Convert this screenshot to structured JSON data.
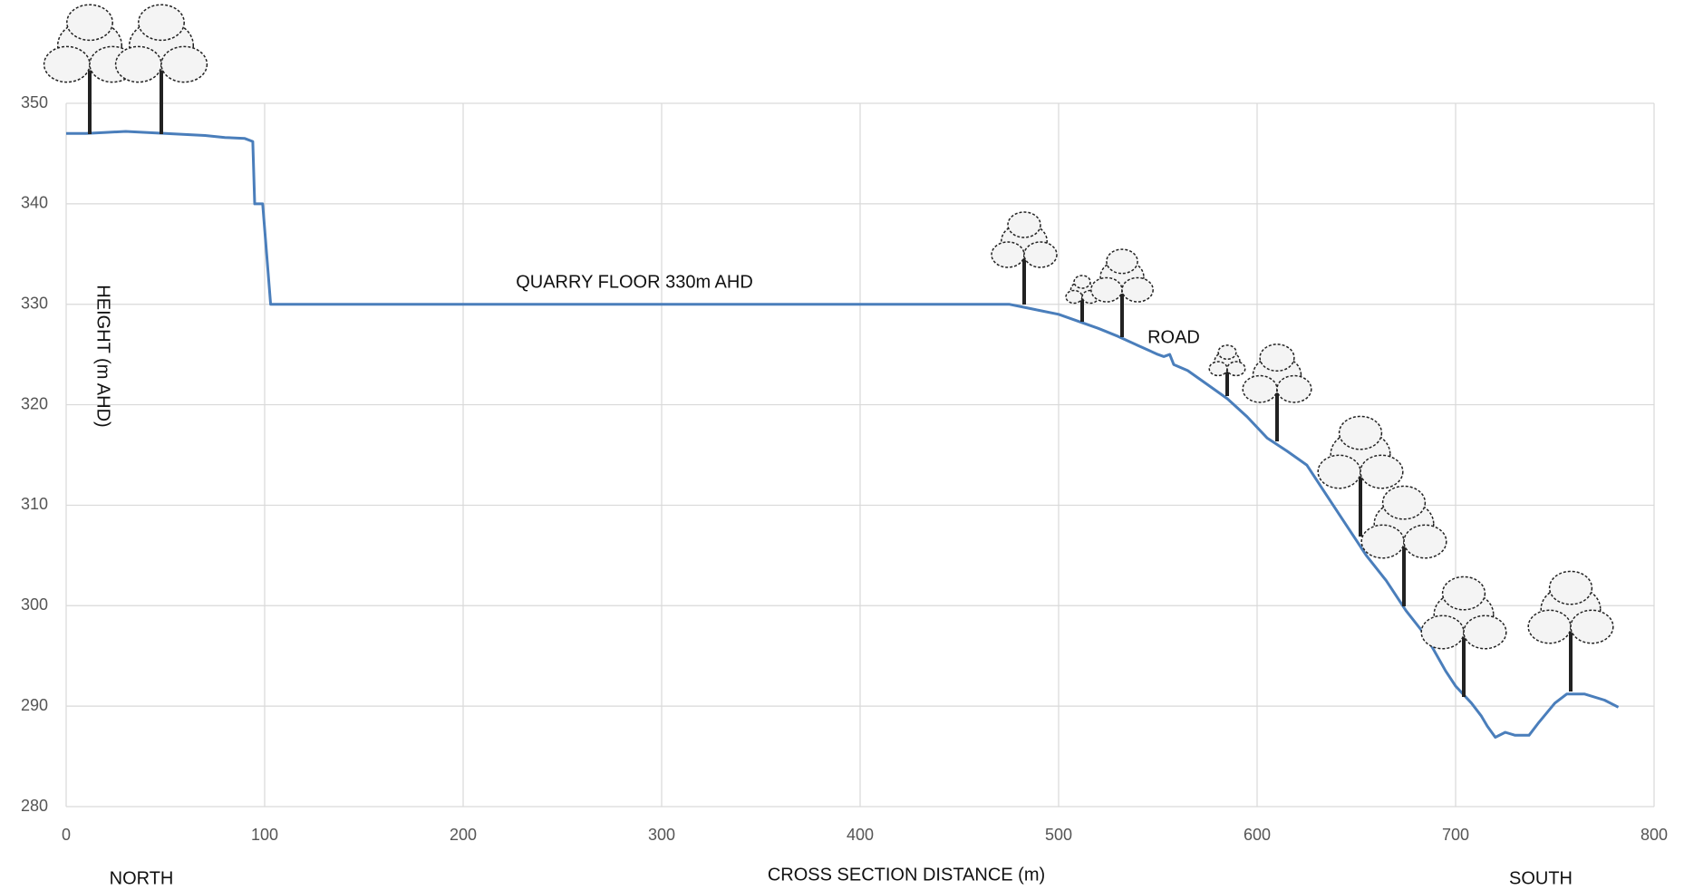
{
  "chart_data": {
    "type": "line",
    "xlabel": "CROSS SECTION DISTANCE (m)",
    "ylabel": "HEIGHT (m AHD)",
    "annotations": [
      "QUARRY FLOOR 330m AHD",
      "ROAD",
      "NORTH",
      "SOUTH"
    ],
    "x": [
      0,
      10,
      20,
      30,
      50,
      60,
      70,
      80,
      90,
      94,
      95,
      99,
      103,
      200,
      300,
      400,
      475,
      480,
      490,
      500,
      510,
      520,
      530,
      540,
      550,
      553,
      556,
      558,
      565,
      575,
      585,
      595,
      605,
      615,
      625,
      635,
      645,
      650,
      655,
      665,
      675,
      685,
      695,
      700,
      708,
      713,
      716,
      720,
      725,
      730,
      737,
      742,
      750,
      756,
      765,
      775,
      782
    ],
    "series": [
      {
        "color": "#4a7ebb",
        "values": [
          347,
          347,
          347.1,
          347.2,
          347,
          346.9,
          346.8,
          346.6,
          346.5,
          346.2,
          340,
          340,
          330,
          330,
          330,
          330,
          330,
          329.8,
          329.4,
          329,
          328.3,
          327.6,
          326.8,
          325.9,
          325,
          324.8,
          325,
          324,
          323.4,
          322,
          320.6,
          318.8,
          316.7,
          315.4,
          314,
          311,
          308,
          306.5,
          305,
          302.5,
          299.5,
          297,
          293.5,
          292,
          290.3,
          289,
          288,
          286.9,
          287.4,
          287.1,
          287.1,
          288.4,
          290.3,
          291.2,
          291.2,
          290.6,
          289.9
        ]
      }
    ],
    "xlim": [
      0,
      800
    ],
    "xticks": [
      0,
      100,
      200,
      300,
      400,
      500,
      600,
      700,
      800
    ],
    "ylim": [
      280,
      350
    ],
    "yticks": [
      280,
      290,
      300,
      310,
      320,
      330,
      340,
      350
    ],
    "grid": true
  }
}
